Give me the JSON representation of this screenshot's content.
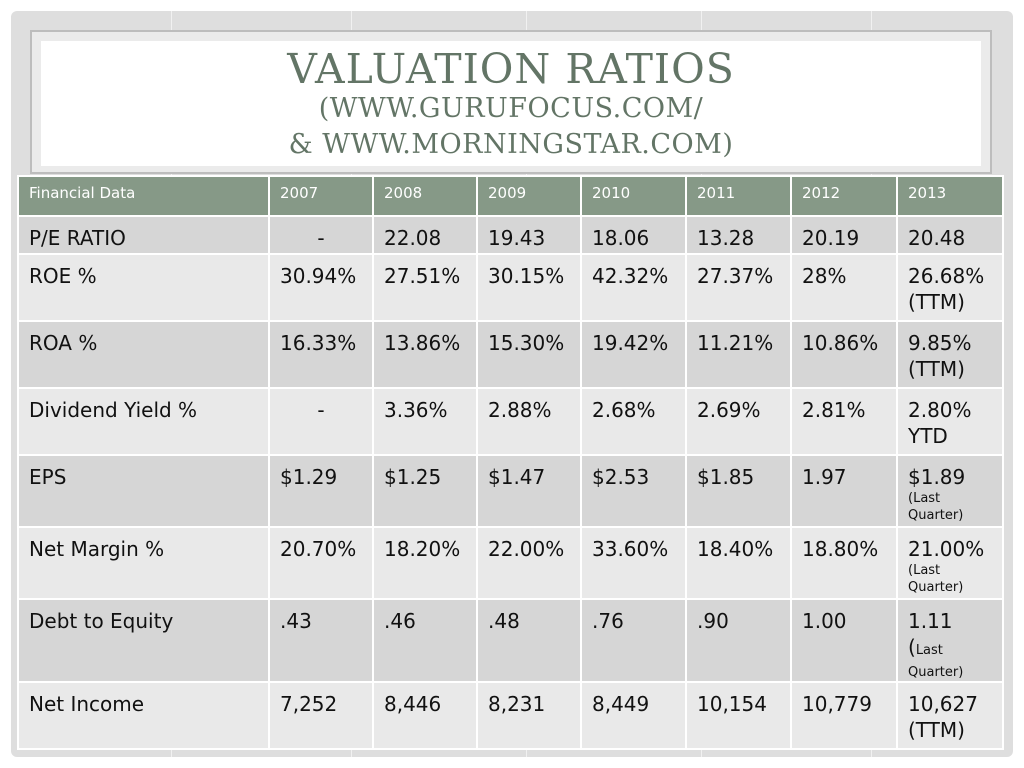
{
  "title": {
    "line1": "VALUATION RATIOS",
    "line2": "(WWW.GURUFOCUS.COM/",
    "line3": "& WWW.MORNINGSTAR.COM)"
  },
  "table": {
    "headers": [
      "Financial Data",
      "2007",
      "2008",
      "2009",
      "2010",
      "2011",
      "2012",
      "2013"
    ],
    "rows": [
      {
        "label": "P/E RATIO",
        "cells": [
          "-",
          "22.08",
          "19.43",
          "18.06",
          "13.28",
          "20.19",
          "20.48"
        ]
      },
      {
        "label": "ROE %",
        "cells": [
          "30.94%",
          "27.51%",
          "30.15%",
          "42.32%",
          "27.37%",
          "28%",
          "26.68%"
        ],
        "last_note": "(TTM)"
      },
      {
        "label": "ROA %",
        "cells": [
          "16.33%",
          "13.86%",
          "15.30%",
          "19.42%",
          "11.21%",
          "10.86%",
          "9.85%"
        ],
        "last_note": "(TTM)"
      },
      {
        "label": "Dividend Yield %",
        "cells": [
          "-",
          "3.36%",
          "2.88%",
          "2.68%",
          "2.69%",
          "2.81%",
          "2.80%"
        ],
        "last_note": "YTD"
      },
      {
        "label": "EPS",
        "cells": [
          "$1.29",
          "$1.25",
          "$1.47",
          "$2.53",
          "$1.85",
          "1.97",
          "$1.89"
        ],
        "last_note": "(Last Quarter)"
      },
      {
        "label": "Net Margin %",
        "cells": [
          "20.70%",
          "18.20%",
          "22.00%",
          "33.60%",
          "18.40%",
          "18.80%",
          "21.00%"
        ],
        "last_note": "(Last Quarter)"
      },
      {
        "label": "Debt to Equity",
        "cells": [
          ".43",
          ".46",
          ".48",
          ".76",
          ".90",
          "1.00",
          "1.11"
        ],
        "last_note_paren": "(",
        "last_note_rest1": "Last",
        "last_note_rest2": "Quarter)"
      },
      {
        "label": "Net Income",
        "cells": [
          "7,252",
          "8,446",
          "8,231",
          "8,449",
          "10,154",
          "10,779",
          "10,627"
        ],
        "last_note": "(TTM)"
      }
    ]
  }
}
